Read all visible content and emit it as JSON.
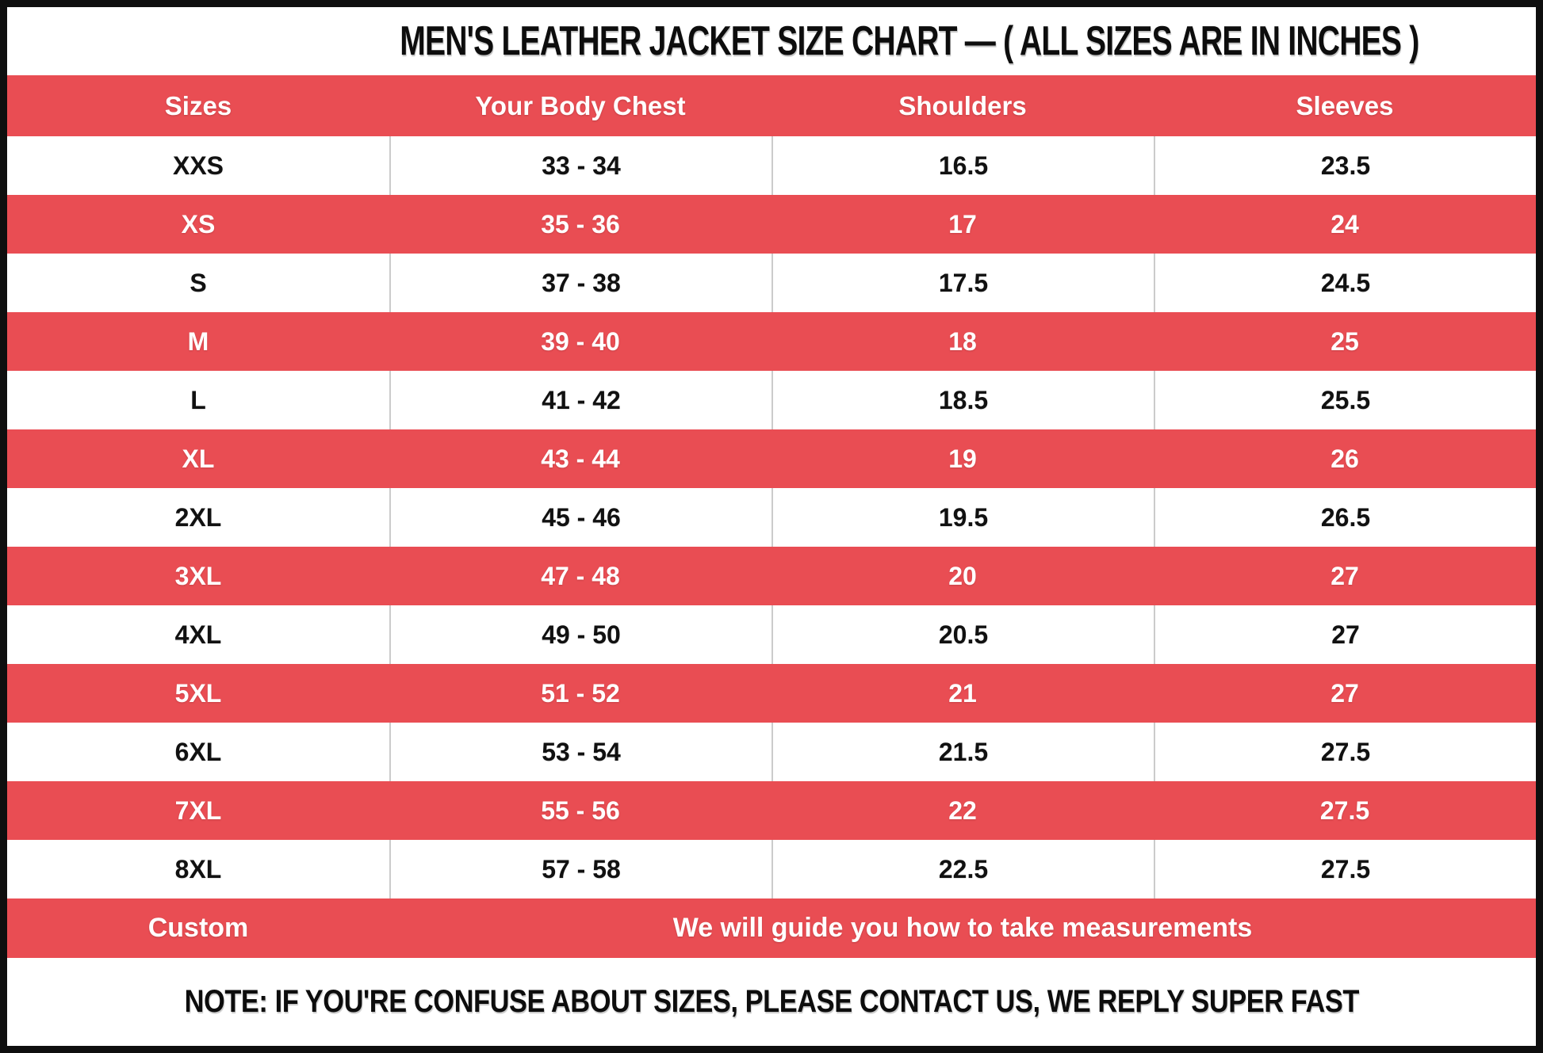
{
  "title": "MEN'S LEATHER JACKET SIZE CHART — ( ALL SIZES ARE IN INCHES )",
  "note": "NOTE: IF YOU'RE CONFUSE ABOUT SIZES, PLEASE CONTACT US, WE REPLY SUPER FAST",
  "colors": {
    "accent_red": "#e94d53",
    "text_on_red": "#ffffff",
    "text_on_white": "#111111",
    "divider_gray": "#cbcbcb",
    "outer_border": "#0f0f0f"
  },
  "table": {
    "columns": [
      "Sizes",
      "Your Body Chest",
      "Shoulders",
      "Sleeves"
    ],
    "rows": [
      {
        "size": "XXS",
        "chest": "33 - 34",
        "shoulders": "16.5",
        "sleeves": "23.5"
      },
      {
        "size": "XS",
        "chest": "35 - 36",
        "shoulders": "17",
        "sleeves": "24"
      },
      {
        "size": "S",
        "chest": "37 - 38",
        "shoulders": "17.5",
        "sleeves": "24.5"
      },
      {
        "size": "M",
        "chest": "39 - 40",
        "shoulders": "18",
        "sleeves": "25"
      },
      {
        "size": "L",
        "chest": "41 - 42",
        "shoulders": "18.5",
        "sleeves": "25.5"
      },
      {
        "size": "XL",
        "chest": "43 - 44",
        "shoulders": "19",
        "sleeves": "26"
      },
      {
        "size": "2XL",
        "chest": "45 - 46",
        "shoulders": "19.5",
        "sleeves": "26.5"
      },
      {
        "size": "3XL",
        "chest": "47 - 48",
        "shoulders": "20",
        "sleeves": "27"
      },
      {
        "size": "4XL",
        "chest": "49 - 50",
        "shoulders": "20.5",
        "sleeves": "27"
      },
      {
        "size": "5XL",
        "chest": "51 - 52",
        "shoulders": "21",
        "sleeves": "27"
      },
      {
        "size": "6XL",
        "chest": "53 - 54",
        "shoulders": "21.5",
        "sleeves": "27.5"
      },
      {
        "size": "7XL",
        "chest": "55 - 56",
        "shoulders": "22",
        "sleeves": "27.5"
      },
      {
        "size": "8XL",
        "chest": "57 - 58",
        "shoulders": "22.5",
        "sleeves": "27.5"
      }
    ],
    "custom_row": {
      "label": "Custom",
      "message": "We will guide you how to take measurements"
    }
  }
}
